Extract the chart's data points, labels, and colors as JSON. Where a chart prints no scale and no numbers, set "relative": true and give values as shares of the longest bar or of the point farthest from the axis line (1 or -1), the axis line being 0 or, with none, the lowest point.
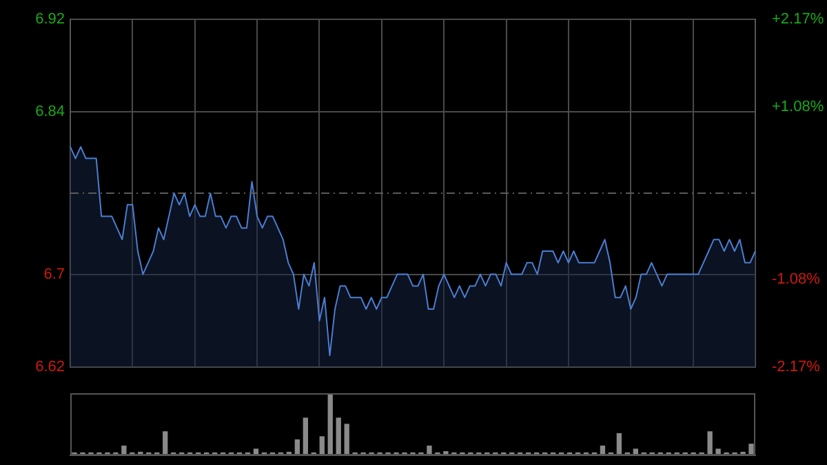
{
  "chart_data": [
    {
      "type": "area",
      "categories": [
        null,
        null,
        null,
        null,
        null,
        null,
        null,
        null,
        null,
        null,
        null,
        null,
        null,
        null,
        null,
        null,
        null,
        null,
        null,
        null,
        null,
        null,
        null,
        null,
        null,
        null,
        null,
        null,
        null,
        null,
        null,
        null,
        null,
        null,
        null,
        null,
        null,
        null,
        null,
        null,
        null,
        null,
        null,
        null,
        null,
        null,
        null,
        null,
        null,
        null,
        null,
        null,
        null,
        null,
        null,
        null,
        null,
        null,
        null,
        null,
        null,
        null,
        null,
        null,
        null,
        null,
        null,
        null,
        null,
        null,
        null,
        null,
        null,
        null,
        null,
        null,
        null,
        null,
        null,
        null,
        null,
        null,
        null,
        null,
        null,
        null,
        null,
        null,
        null,
        null,
        null,
        null,
        null,
        null,
        null,
        null,
        null,
        null,
        null,
        null,
        null,
        null,
        null,
        null,
        null,
        null,
        null,
        null,
        null,
        null,
        null,
        null,
        null,
        null,
        null,
        null,
        null,
        null,
        null,
        null,
        null,
        null,
        null,
        null,
        null,
        null,
        null,
        null,
        null,
        null,
        null,
        null,
        null
      ],
      "series": [
        {
          "color": "#4a7fd4",
          "values": [
            6.81,
            6.8,
            6.81,
            6.8,
            6.8,
            6.8,
            6.75,
            6.75,
            6.75,
            6.74,
            6.73,
            6.76,
            6.76,
            6.72,
            6.7,
            6.71,
            6.72,
            6.74,
            6.73,
            6.75,
            6.77,
            6.76,
            6.77,
            6.75,
            6.76,
            6.75,
            6.75,
            6.77,
            6.75,
            6.75,
            6.74,
            6.75,
            6.75,
            6.74,
            6.74,
            6.78,
            6.75,
            6.74,
            6.75,
            6.75,
            6.74,
            6.73,
            6.71,
            6.7,
            6.67,
            6.7,
            6.69,
            6.71,
            6.66,
            6.68,
            6.63,
            6.67,
            6.69,
            6.69,
            6.68,
            6.68,
            6.68,
            6.67,
            6.68,
            6.67,
            6.68,
            6.68,
            6.69,
            6.7,
            6.7,
            6.7,
            6.69,
            6.69,
            6.7,
            6.67,
            6.67,
            6.69,
            6.7,
            6.69,
            6.68,
            6.69,
            6.68,
            6.69,
            6.69,
            6.7,
            6.69,
            6.7,
            6.7,
            6.69,
            6.71,
            6.7,
            6.7,
            6.7,
            6.71,
            6.71,
            6.7,
            6.72,
            6.72,
            6.72,
            6.71,
            6.72,
            6.71,
            6.72,
            6.71,
            6.71,
            6.71,
            6.71,
            6.72,
            6.73,
            6.71,
            6.68,
            6.68,
            6.69,
            6.67,
            6.68,
            6.7,
            6.7,
            6.71,
            6.7,
            6.69,
            6.7,
            6.7,
            6.7,
            6.7,
            6.7,
            6.7,
            6.7,
            6.71,
            6.72,
            6.73,
            6.73,
            6.72,
            6.73,
            6.72,
            6.73,
            6.71,
            6.71,
            6.72
          ]
        }
      ],
      "ylim": [
        6.62,
        6.92
      ],
      "yticks": [
        6.62,
        6.7,
        6.84,
        6.92
      ],
      "y2lim": [
        -2.17,
        2.17
      ],
      "y2ticks": [
        {
          "value": -2.17,
          "label": "-2.17%"
        },
        {
          "value": -1.08,
          "label": "-1.08%"
        },
        {
          "value": 1.08,
          "label": "+1.08%"
        },
        {
          "value": 2.17,
          "label": "+2.17%"
        }
      ],
      "ref_lines": [
        {
          "axis": "y",
          "value": 6.77,
          "color": "#5a5a5a",
          "line_style": "dashed"
        }
      ],
      "grid": true,
      "legend": false,
      "marker": "none",
      "line_style": "solid"
    },
    {
      "type": "bar",
      "relative": true,
      "categories": [
        null,
        null,
        null,
        null,
        null,
        null,
        null,
        null,
        null,
        null,
        null,
        null,
        null,
        null,
        null,
        null,
        null,
        null,
        null,
        null,
        null,
        null,
        null,
        null,
        null,
        null,
        null,
        null,
        null,
        null,
        null,
        null,
        null,
        null,
        null,
        null,
        null,
        null,
        null,
        null,
        null,
        null,
        null,
        null,
        null,
        null,
        null,
        null,
        null,
        null,
        null,
        null,
        null,
        null,
        null,
        null,
        null,
        null,
        null,
        null,
        null,
        null,
        null,
        null,
        null,
        null,
        null,
        null,
        null,
        null,
        null,
        null,
        null,
        null,
        null,
        null,
        null,
        null,
        null,
        null,
        null,
        null,
        null
      ],
      "color": "#8a8a8a",
      "values": [
        0.04,
        0.04,
        0.04,
        0.04,
        0.04,
        0.04,
        0.15,
        0.04,
        0.05,
        0.04,
        0.04,
        0.38,
        0.04,
        0.04,
        0.04,
        0.04,
        0.04,
        0.04,
        0.04,
        0.04,
        0.04,
        0.04,
        0.1,
        0.04,
        0.04,
        0.04,
        0.05,
        0.25,
        0.6,
        0.04,
        0.3,
        1,
        0.6,
        0.5,
        0.04,
        0.04,
        0.04,
        0.04,
        0.04,
        0.04,
        0.04,
        0.04,
        0.04,
        0.15,
        0.04,
        0.06,
        0.04,
        0.04,
        0.04,
        0.04,
        0.04,
        0.04,
        0.04,
        0.04,
        0.04,
        0.04,
        0.04,
        0.04,
        0.04,
        0.04,
        0.04,
        0.04,
        0.04,
        0.04,
        0.15,
        0.04,
        0.35,
        0.04,
        0.1,
        0.04,
        0.04,
        0.04,
        0.04,
        0.04,
        0.04,
        0.04,
        0.04,
        0.38,
        0.1,
        0.04,
        0.04,
        0.05,
        0.18
      ],
      "legend": false
    }
  ]
}
